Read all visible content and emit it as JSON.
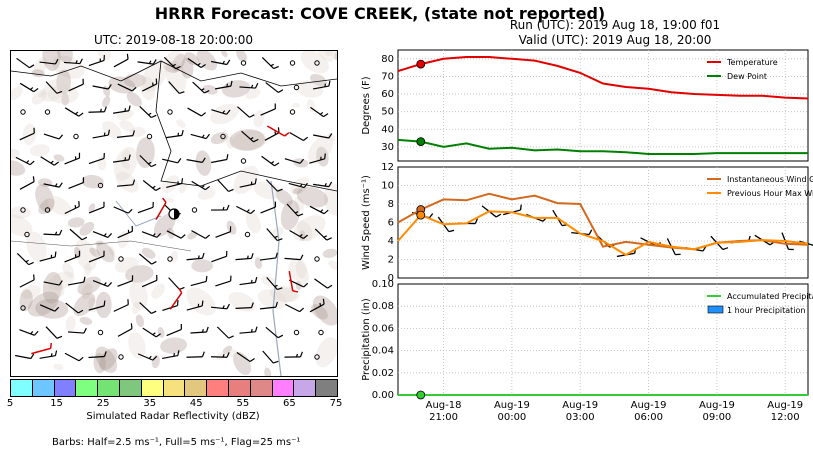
{
  "title": "HRRR Forecast: COVE CREEK, (state not reported)",
  "map": {
    "title": "UTC: 2019-08-18 20:00:00",
    "colorbar_label": "Simulated Radar Reflectivity (dBZ)",
    "colorbar_ticks": [
      "5",
      "15",
      "25",
      "35",
      "45",
      "55",
      "65",
      "75"
    ],
    "colorbar_colors": [
      "#7fffff",
      "#6ec6ff",
      "#7f7fff",
      "#7fff7f",
      "#74e374",
      "#7fc77f",
      "#ffff7f",
      "#f5e27f",
      "#e2c77f",
      "#ff7f7f",
      "#e77f7f",
      "#de8888",
      "#ff7fff",
      "#c7a7e7",
      "#7f7f7f"
    ],
    "barbs_note": "Barbs: Half=2.5 ms⁻¹, Full=5 ms⁻¹, Flag=25 ms⁻¹"
  },
  "run_info": {
    "run": "Run (UTC): 2019 Aug 18, 19:00 f01",
    "valid": "Valid (UTC): 2019 Aug 18, 20:00"
  },
  "x_ticks": [
    {
      "line1": "Aug-18",
      "line2": "21:00",
      "x": "2019-08-18T21:00"
    },
    {
      "line1": "Aug-19",
      "line2": "00:00",
      "x": "2019-08-19T00:00"
    },
    {
      "line1": "Aug-19",
      "line2": "03:00",
      "x": "2019-08-19T03:00"
    },
    {
      "line1": "Aug-19",
      "line2": "06:00",
      "x": "2019-08-19T06:00"
    },
    {
      "line1": "Aug-19",
      "line2": "09:00",
      "x": "2019-08-19T09:00"
    },
    {
      "line1": "Aug-19",
      "line2": "12:00",
      "x": "2019-08-19T12:00"
    }
  ],
  "chart_data": [
    {
      "type": "line",
      "ylabel": "Degrees (F)",
      "ylim": [
        22,
        85
      ],
      "yticks": [
        30,
        40,
        50,
        60,
        70,
        80
      ],
      "grid": true,
      "legend_position": "top-right",
      "x": [
        "2019-08-18T19:00",
        "2019-08-18T20:00",
        "2019-08-18T21:00",
        "2019-08-18T22:00",
        "2019-08-18T23:00",
        "2019-08-19T00:00",
        "2019-08-19T01:00",
        "2019-08-19T02:00",
        "2019-08-19T03:00",
        "2019-08-19T04:00",
        "2019-08-19T05:00",
        "2019-08-19T06:00",
        "2019-08-19T07:00",
        "2019-08-19T08:00",
        "2019-08-19T09:00",
        "2019-08-19T10:00",
        "2019-08-19T11:00",
        "2019-08-19T12:00",
        "2019-08-19T13:00"
      ],
      "series": [
        {
          "name": "Temperature",
          "color": "#e00000",
          "values": [
            73,
            77,
            80,
            81,
            81,
            80,
            79,
            76,
            72,
            66,
            64,
            63,
            61,
            60,
            59.5,
            59,
            59,
            58,
            57.5
          ]
        },
        {
          "name": "Dew Point",
          "color": "#008000",
          "values": [
            34,
            33,
            30,
            32,
            29,
            29.5,
            28,
            28.5,
            27.5,
            27.5,
            27,
            26,
            26,
            26,
            26.5,
            26.5,
            26.5,
            26.5,
            26.5
          ]
        }
      ],
      "markers": [
        {
          "series": "Temperature",
          "x": "2019-08-18T20:00",
          "value": 77
        },
        {
          "series": "Dew Point",
          "x": "2019-08-18T20:00",
          "value": 33
        }
      ]
    },
    {
      "type": "line",
      "ylabel": "Wind Speed (ms⁻¹)",
      "ylim": [
        0,
        12
      ],
      "yticks": [
        0,
        2,
        4,
        6,
        8,
        10,
        12
      ],
      "grid": true,
      "legend_position": "top-right",
      "x": [
        "2019-08-18T19:00",
        "2019-08-18T20:00",
        "2019-08-18T21:00",
        "2019-08-18T22:00",
        "2019-08-18T23:00",
        "2019-08-19T00:00",
        "2019-08-19T01:00",
        "2019-08-19T02:00",
        "2019-08-19T03:00",
        "2019-08-19T04:00",
        "2019-08-19T05:00",
        "2019-08-19T06:00",
        "2019-08-19T07:00",
        "2019-08-19T08:00",
        "2019-08-19T09:00",
        "2019-08-19T10:00",
        "2019-08-19T11:00",
        "2019-08-19T12:00",
        "2019-08-19T13:00"
      ],
      "series": [
        {
          "name": "Instantaneous Wind Gust",
          "color": "#d2691e",
          "values": [
            6,
            7.4,
            8.5,
            8.4,
            9.1,
            8.5,
            8.9,
            8.1,
            8,
            3.4,
            3.9,
            3.6,
            3.3,
            3.1,
            3.8,
            4,
            4.1,
            3.7,
            3.6
          ]
        },
        {
          "name": "Previous Hour Max Wind",
          "color": "#ff8c00",
          "values": [
            4,
            6.8,
            5.8,
            5.9,
            7.2,
            7.1,
            6.5,
            6.5,
            4.8,
            4,
            2.5,
            3.9,
            3.4,
            3.1,
            3.8,
            3.9,
            4.1,
            4,
            3.7
          ]
        }
      ],
      "markers": [
        {
          "series": "Instantaneous Wind Gust",
          "x": "2019-08-18T20:00",
          "value": 7.4
        },
        {
          "series": "Previous Hour Max Wind",
          "x": "2019-08-18T20:00",
          "value": 6.8
        }
      ],
      "barbs": "wind barbs plotted along series at each hour"
    },
    {
      "type": "line",
      "ylabel": "Precipitation (in)",
      "ylim": [
        0,
        0.1
      ],
      "yticks": [
        0.0,
        0.02,
        0.04,
        0.06,
        0.08,
        0.1
      ],
      "ytick_labels": [
        "0.00",
        "0.02",
        "0.04",
        "0.06",
        "0.08",
        "0.10"
      ],
      "grid": true,
      "legend_position": "top-right",
      "x": [
        "2019-08-18T19:00",
        "2019-08-18T20:00",
        "2019-08-18T21:00",
        "2019-08-18T22:00",
        "2019-08-18T23:00",
        "2019-08-19T00:00",
        "2019-08-19T01:00",
        "2019-08-19T02:00",
        "2019-08-19T03:00",
        "2019-08-19T04:00",
        "2019-08-19T05:00",
        "2019-08-19T06:00",
        "2019-08-19T07:00",
        "2019-08-19T08:00",
        "2019-08-19T09:00",
        "2019-08-19T10:00",
        "2019-08-19T11:00",
        "2019-08-19T12:00",
        "2019-08-19T13:00"
      ],
      "series": [
        {
          "name": "Accumulated Precipitation",
          "color": "#32cd32",
          "values": [
            0,
            0,
            0,
            0,
            0,
            0,
            0,
            0,
            0,
            0,
            0,
            0,
            0,
            0,
            0,
            0,
            0,
            0,
            0
          ]
        },
        {
          "name": "1 hour Precipitation",
          "color": "#1e90ff",
          "type": "bar",
          "values": [
            0,
            0,
            0,
            0,
            0,
            0,
            0,
            0,
            0,
            0,
            0,
            0,
            0,
            0,
            0,
            0,
            0,
            0,
            0
          ]
        }
      ],
      "markers": [
        {
          "series": "Accumulated Precipitation",
          "x": "2019-08-18T20:00",
          "value": 0
        }
      ]
    }
  ]
}
